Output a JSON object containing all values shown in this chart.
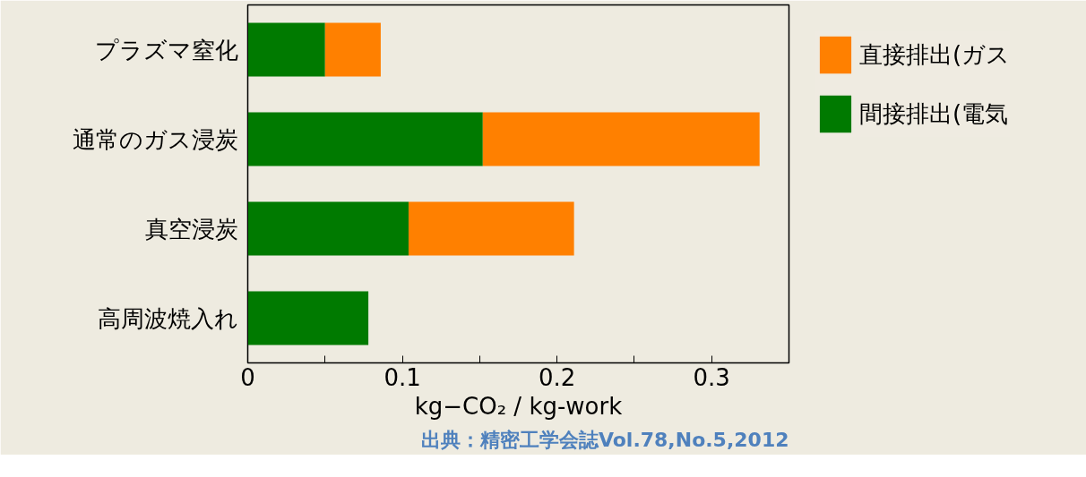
{
  "chart_data": {
    "type": "bar",
    "orientation": "horizontal",
    "stacked": true,
    "categories": [
      "プラズマ窒化",
      "通常のガス浸炭",
      "真空浸炭",
      "高周波焼入れ"
    ],
    "series": [
      {
        "name": "間接排出(電気",
        "color": "#007a00",
        "values": [
          0.05,
          0.152,
          0.104,
          0.078
        ]
      },
      {
        "name": "直接排出(ガス",
        "color": "#ff8000",
        "values": [
          0.036,
          0.179,
          0.107,
          0
        ]
      }
    ],
    "xlabel": "kg−CO₂ / kg-work",
    "xlim": [
      0,
      0.35
    ],
    "xticks": [
      0,
      {
        "value": 0.05,
        "label": null
      },
      0.1,
      {
        "value": 0.15,
        "label": null
      },
      0.2,
      {
        "value": 0.25,
        "label": null
      },
      0.3
    ],
    "grid": false,
    "legend": "top right",
    "annotations": [
      "出典：精密工学会誌Vol.78,No.5,2012"
    ]
  }
}
